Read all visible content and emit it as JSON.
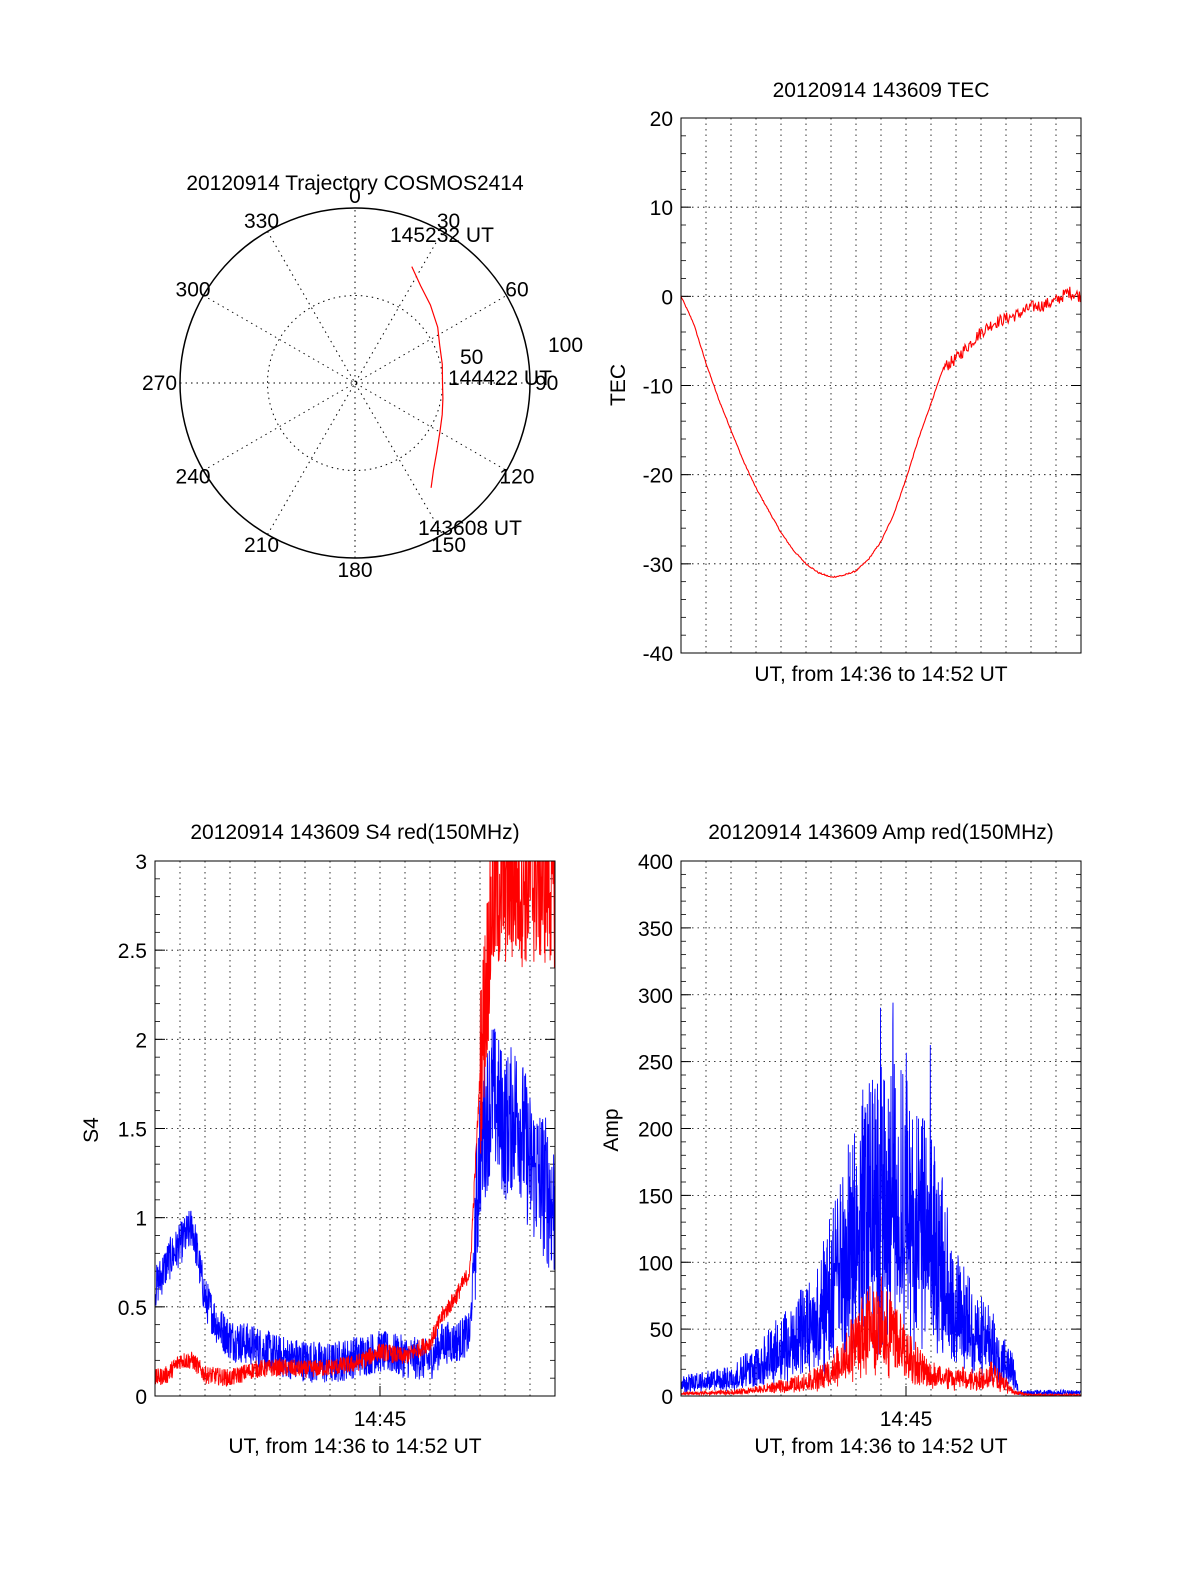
{
  "chart_data": [
    {
      "id": "polar",
      "type": "polar-trajectory",
      "title": "20120914 Trajectory COSMOS2414",
      "azimuth_labels": [
        "0",
        "30",
        "60",
        "90",
        "120",
        "150",
        "180",
        "210",
        "240",
        "270",
        "300",
        "330"
      ],
      "radial_labels": [
        "50",
        "100"
      ],
      "radial_range": [
        0,
        100
      ],
      "radial_meaning": "inverse elevation (90 - el)",
      "trajectory": {
        "color": "#ff0000",
        "points": [
          [
            26,
            74
          ],
          [
            34,
            67
          ],
          [
            44,
            62
          ],
          [
            56,
            57
          ],
          [
            66,
            53
          ],
          [
            78,
            51
          ],
          [
            90,
            50
          ],
          [
            100,
            51
          ],
          [
            110,
            53
          ],
          [
            120,
            56
          ],
          [
            130,
            61
          ],
          [
            138,
            67
          ],
          [
            144,
            74
          ]
        ],
        "labels": [
          "145232 UT",
          "144422 UT",
          "143608 UT"
        ],
        "label_points": [
          [
            26,
            74
          ],
          [
            86,
            52
          ],
          [
            144,
            74
          ]
        ]
      },
      "grid": true
    },
    {
      "id": "tec",
      "type": "line",
      "title": "20120914 143609 TEC",
      "xlabel": "UT, from 14:36 to 14:52 UT",
      "ylabel": "TEC",
      "xlim": [
        0,
        16
      ],
      "ylim": [
        -40,
        20
      ],
      "yticks": [
        "20",
        "10",
        "0",
        "-10",
        "-20",
        "-30",
        "-40"
      ],
      "ytick_values": [
        20,
        10,
        0,
        -10,
        -20,
        -30,
        -40
      ],
      "grid": true,
      "series": [
        {
          "color": "#ff0000",
          "x": [
            0,
            0.5,
            1,
            1.5,
            2,
            2.5,
            3,
            3.5,
            4,
            4.5,
            5,
            5.5,
            6,
            6.5,
            7,
            7.5,
            8,
            8.5,
            9,
            9.5,
            10,
            10.5,
            11,
            11.5,
            12,
            12.5,
            13,
            13.5,
            14,
            14.5,
            15,
            15.5,
            16
          ],
          "y": [
            0,
            -3,
            -7.5,
            -11.5,
            -15,
            -18.5,
            -21.5,
            -24,
            -26.5,
            -28.5,
            -30,
            -31,
            -31.5,
            -31.3,
            -30.8,
            -29.5,
            -27.5,
            -24.5,
            -20.5,
            -16,
            -12,
            -8,
            -7,
            -5.5,
            -4,
            -3,
            -2.5,
            -2,
            -1.2,
            -1,
            -0.5,
            0.5,
            0
          ],
          "noise": 0.7,
          "noise_from_x": 10.5
        }
      ]
    },
    {
      "id": "s4",
      "type": "line",
      "title": "20120914 143609 S4 red(150MHz)",
      "xlabel": "UT, from 14:36 to 14:52 UT",
      "ylabel": "S4",
      "xtick_label": "14:45",
      "xtick_value": 9,
      "xlim": [
        0,
        16
      ],
      "ylim": [
        0,
        3
      ],
      "yticks": [
        "3",
        "2.5",
        "2",
        "1.5",
        "1",
        "0.5",
        "0"
      ],
      "ytick_values": [
        3,
        2.5,
        2,
        1.5,
        1,
        0.5,
        0
      ],
      "grid": true,
      "series": [
        {
          "color": "#0000ff",
          "x": [
            0,
            0.5,
            1,
            1.5,
            2,
            2.5,
            3,
            3.5,
            4,
            5,
            6,
            7,
            8,
            9,
            10,
            11,
            11.5,
            12,
            12.6,
            13,
            13.5,
            14,
            14.5,
            15,
            15.5,
            16
          ],
          "y": [
            0.6,
            0.75,
            0.85,
            0.95,
            0.55,
            0.4,
            0.32,
            0.3,
            0.28,
            0.22,
            0.2,
            0.18,
            0.22,
            0.25,
            0.22,
            0.2,
            0.3,
            0.3,
            0.35,
            1.4,
            1.7,
            1.5,
            1.6,
            1.3,
            1.2,
            1.05
          ],
          "noise": 0.12,
          "noise_scale_from_x": 12.8,
          "noise_scale": 3.5
        },
        {
          "color": "#ff0000",
          "x": [
            0,
            0.5,
            1,
            1.5,
            2,
            3,
            4,
            5,
            6,
            7,
            8,
            9,
            10,
            11,
            11.5,
            12,
            12.6,
            13,
            13.5,
            14,
            14.5,
            15,
            15.5,
            16
          ],
          "y": [
            0.1,
            0.12,
            0.2,
            0.2,
            0.12,
            0.1,
            0.15,
            0.16,
            0.15,
            0.16,
            0.18,
            0.25,
            0.22,
            0.3,
            0.45,
            0.55,
            0.7,
            1.8,
            2.8,
            2.9,
            2.9,
            2.9,
            2.9,
            2.9
          ],
          "noise": 0.05,
          "noise_scale_from_x": 13,
          "noise_scale": 10
        }
      ]
    },
    {
      "id": "amp",
      "type": "line",
      "title": "20120914 143609 Amp red(150MHz)",
      "xlabel": "UT, from 14:36 to 14:52 UT",
      "ylabel": "Amp",
      "xtick_label": "14:45",
      "xtick_value": 9,
      "xlim": [
        0,
        16
      ],
      "ylim": [
        0,
        400
      ],
      "yticks": [
        "400",
        "350",
        "300",
        "250",
        "200",
        "150",
        "100",
        "50",
        "0"
      ],
      "ytick_values": [
        400,
        350,
        300,
        250,
        200,
        150,
        100,
        50,
        0
      ],
      "grid": true,
      "series": [
        {
          "color": "#0000ff",
          "x": [
            0,
            1,
            2,
            3,
            3.5,
            4,
            4.5,
            5,
            5.5,
            6,
            6.5,
            7,
            7.5,
            8,
            8.5,
            9,
            9.5,
            10,
            10.5,
            11,
            11.5,
            12,
            12.5,
            13,
            13.2,
            13.5,
            14,
            15,
            16
          ],
          "y": [
            10,
            12,
            15,
            25,
            32,
            42,
            48,
            55,
            65,
            90,
            110,
            140,
            160,
            150,
            170,
            155,
            140,
            130,
            105,
            70,
            60,
            50,
            40,
            30,
            25,
            3,
            3,
            3,
            3
          ],
          "peak": [
            [
              8,
              310
            ],
            [
              8.5,
              270
            ],
            [
              9,
              220
            ],
            [
              10,
              180
            ]
          ],
          "noise": 0.55
        },
        {
          "color": "#ff0000",
          "x": [
            0,
            2,
            3,
            4,
            5,
            5.5,
            6,
            6.5,
            7,
            7.5,
            8,
            8.5,
            9,
            9.5,
            10,
            11,
            12,
            12.5,
            13,
            13.3,
            14,
            16
          ],
          "y": [
            2,
            3,
            5,
            8,
            12,
            15,
            20,
            30,
            45,
            55,
            60,
            50,
            35,
            25,
            18,
            15,
            15,
            18,
            10,
            3,
            1,
            1
          ],
          "noise": 0.5
        }
      ]
    }
  ]
}
